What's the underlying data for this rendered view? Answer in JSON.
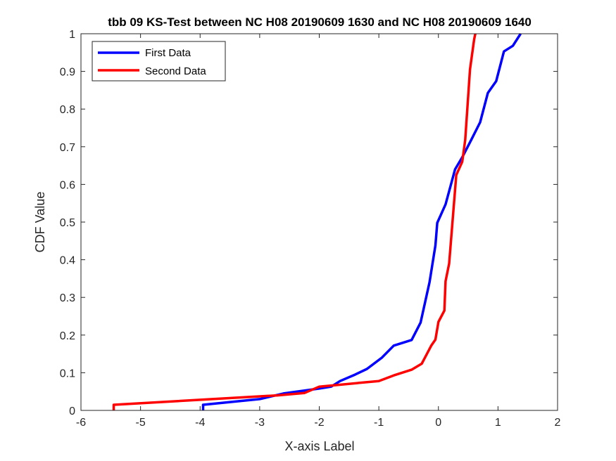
{
  "chart_data": {
    "type": "line",
    "title": "tbb 09 KS-Test between NC H08 20190609 1630 and NC H08 20190609 1640",
    "xlabel": "X-axis Label",
    "ylabel": "CDF Value",
    "xlim": [
      -6,
      2
    ],
    "ylim": [
      0,
      1
    ],
    "xticks": [
      -6,
      -5,
      -4,
      -3,
      -2,
      -1,
      0,
      1,
      2
    ],
    "yticks": [
      0,
      0.1,
      0.2,
      0.3,
      0.4,
      0.5,
      0.6,
      0.7,
      0.8,
      0.9,
      1
    ],
    "grid": false,
    "legend_position": "top-left",
    "series": [
      {
        "name": "First Data",
        "color": "#0000ff",
        "points": [
          [
            -3.95,
            0
          ],
          [
            -3.95,
            0.015
          ],
          [
            -3.0,
            0.03
          ],
          [
            -2.6,
            0.045
          ],
          [
            -2.0,
            0.058
          ],
          [
            -1.8,
            0.063
          ],
          [
            -1.65,
            0.078
          ],
          [
            -1.4,
            0.095
          ],
          [
            -1.2,
            0.11
          ],
          [
            -0.95,
            0.14
          ],
          [
            -0.75,
            0.172
          ],
          [
            -0.45,
            0.187
          ],
          [
            -0.3,
            0.233
          ],
          [
            -0.15,
            0.34
          ],
          [
            -0.05,
            0.438
          ],
          [
            -0.02,
            0.498
          ],
          [
            0.12,
            0.547
          ],
          [
            0.28,
            0.64
          ],
          [
            0.4,
            0.672
          ],
          [
            0.55,
            0.718
          ],
          [
            0.7,
            0.765
          ],
          [
            0.83,
            0.843
          ],
          [
            0.97,
            0.874
          ],
          [
            1.1,
            0.953
          ],
          [
            1.25,
            0.968
          ],
          [
            1.38,
            1.0
          ]
        ]
      },
      {
        "name": "Second Data",
        "color": "#ff0000",
        "points": [
          [
            -5.45,
            0
          ],
          [
            -5.45,
            0.015
          ],
          [
            -2.7,
            0.04
          ],
          [
            -2.25,
            0.046
          ],
          [
            -2.0,
            0.063
          ],
          [
            -1.0,
            0.078
          ],
          [
            -0.75,
            0.093
          ],
          [
            -0.45,
            0.108
          ],
          [
            -0.28,
            0.124
          ],
          [
            -0.12,
            0.172
          ],
          [
            -0.05,
            0.188
          ],
          [
            0.0,
            0.235
          ],
          [
            0.05,
            0.25
          ],
          [
            0.1,
            0.265
          ],
          [
            0.12,
            0.343
          ],
          [
            0.18,
            0.39
          ],
          [
            0.3,
            0.625
          ],
          [
            0.4,
            0.66
          ],
          [
            0.45,
            0.718
          ],
          [
            0.53,
            0.905
          ],
          [
            0.6,
            0.985
          ],
          [
            0.62,
            1.0
          ]
        ]
      }
    ]
  }
}
